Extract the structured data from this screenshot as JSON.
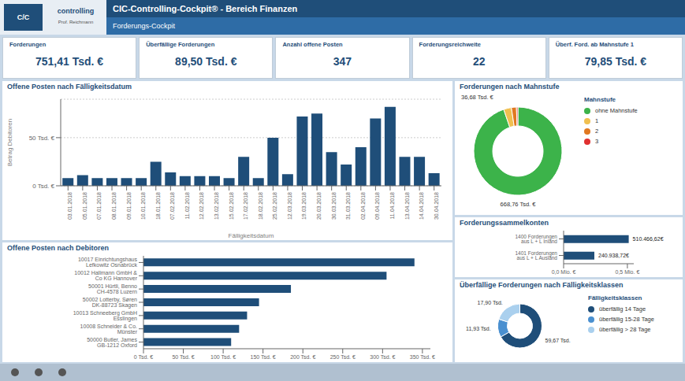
{
  "title": "CIC-Controlling-Cockpit® - Bereich Finanzen",
  "subtitle": "Forderungs-Cockpit",
  "annotations": [
    "C/C",
    "controlling",
    "Prof. Reichmann"
  ],
  "kpis": [
    {
      "label": "Forderungen",
      "value": "751,41 Tsd. €"
    },
    {
      "label": "Überfällige Forderungen",
      "value": "89,50 Tsd. €"
    },
    {
      "label": "Anzahl offene Posten",
      "value": "347"
    },
    {
      "label": "Forderungsreichweite",
      "value": "22"
    },
    {
      "label": "Überf. Ford. ab Mahnstufe 1",
      "value": "79,85 Tsd. €"
    }
  ],
  "chart_data": [
    {
      "type": "bar",
      "title": "Offene Posten nach Fälligkeitsdatum",
      "x_label": "Fälligkeitsdatum",
      "y_label": "Betrag Debitoren",
      "categories": [
        "03.01.2018",
        "05.01.2018",
        "07.01.2018",
        "08.01.2018",
        "09.01.2018",
        "10.01.2018",
        "18.01.2018",
        "07.02.2018",
        "11.02.2018",
        "12.02.2018",
        "13.02.2018",
        "15.02.2018",
        "17.02.2018",
        "18.02.2018",
        "25.02.2018",
        "12.03.2018",
        "19.03.2018",
        "20.03.2018",
        "30.03.2018",
        "31.03.2018",
        "02.04.2018",
        "09.04.2018",
        "11.04.2018",
        "13.04.2018",
        "14.04.2018",
        "30.04.2018"
      ],
      "values": [
        8,
        11,
        8,
        8,
        8,
        8,
        25,
        14,
        10,
        10,
        10,
        8,
        30,
        8,
        50,
        12,
        72,
        75,
        35,
        22,
        40,
        70,
        82,
        30,
        30,
        13
      ],
      "color": "#1f4e79",
      "ylim": [
        0,
        90
      ],
      "yticks": [
        {
          "value": 0,
          "label": "0 Tsd. €"
        },
        {
          "value": 50,
          "label": "50 Tsd. €"
        }
      ],
      "grid": true
    },
    {
      "type": "donut",
      "title": "Forderungen nach Mahnstufe",
      "legend_title": "Mahnstufe",
      "categories": [
        "ohne Mahnstufe",
        "1",
        "2",
        "3"
      ],
      "values": [
        668.76,
        20.0,
        13.0,
        3.68
      ],
      "colors": [
        "#3cb34a",
        "#f0c050",
        "#e07820",
        "#e03030"
      ],
      "annotations": [
        "36,68 Tsd. €",
        "668,76 Tsd. €"
      ],
      "legend": "right"
    },
    {
      "type": "bar",
      "orientation": "horizontal",
      "title": "Forderungssammelkonten",
      "categories": [
        "1400 Forderungen aus L + L Inland",
        "1401 Forderungen aus L + L Ausland"
      ],
      "values": [
        510466.62,
        240938.72
      ],
      "value_labels": [
        "510.466,62€",
        "240.938,72€"
      ],
      "data_labels": true,
      "color": "#1f4e79",
      "xlim": [
        0,
        550000
      ],
      "xticks": [
        {
          "value": 0,
          "label": "0,0 Mio. €"
        },
        {
          "value": 500000,
          "label": "0,5 Mio. €"
        }
      ]
    },
    {
      "type": "bar",
      "orientation": "horizontal",
      "title": "Offene Posten nach Debitoren",
      "categories": [
        "10017 Einrichtungshaus Lefkowitz Osnabrück",
        "10012 Hallmann GmbH & Co KG Hannover",
        "50001 Hürtli, Benno CH-4578 Luzern",
        "50002 Lotterby, Søren DK-88723 Skagen",
        "10013 Schneeberg GmbH Esslingen",
        "10008 Schneider & Co. Münster",
        "50000 Butler, James GB-1212 Oxford"
      ],
      "values": [
        340,
        305,
        185,
        145,
        130,
        120,
        110
      ],
      "color": "#1f4e79",
      "xlim": [
        0,
        360
      ],
      "xticks": [
        {
          "value": 0,
          "label": "0 Tsd. €"
        },
        {
          "value": 50,
          "label": "50 Tsd. €"
        },
        {
          "value": 100,
          "label": "100 Tsd. €"
        },
        {
          "value": 150,
          "label": "150 Tsd. €"
        },
        {
          "value": 200,
          "label": "200 Tsd. €"
        },
        {
          "value": 250,
          "label": "250 Tsd. €"
        },
        {
          "value": 300,
          "label": "300 Tsd. €"
        },
        {
          "value": 350,
          "label": "350 Tsd. €"
        }
      ]
    },
    {
      "type": "donut",
      "title": "Überfällige Forderungen nach Fälligkeitsklassen",
      "legend_title": "Fälligkeitsklassen",
      "categories": [
        "überfällig 14 Tage",
        "überfällig 15-28 Tage",
        "überfällig > 28 Tage"
      ],
      "values": [
        59.67,
        11.93,
        17.9
      ],
      "value_labels": [
        "59,67 Tsd.",
        "11,93 Tsd.",
        "17,90 Tsd."
      ],
      "data_labels": true,
      "colors": [
        "#1f4e79",
        "#4a90d0",
        "#aad0ee"
      ],
      "legend": "right"
    }
  ]
}
